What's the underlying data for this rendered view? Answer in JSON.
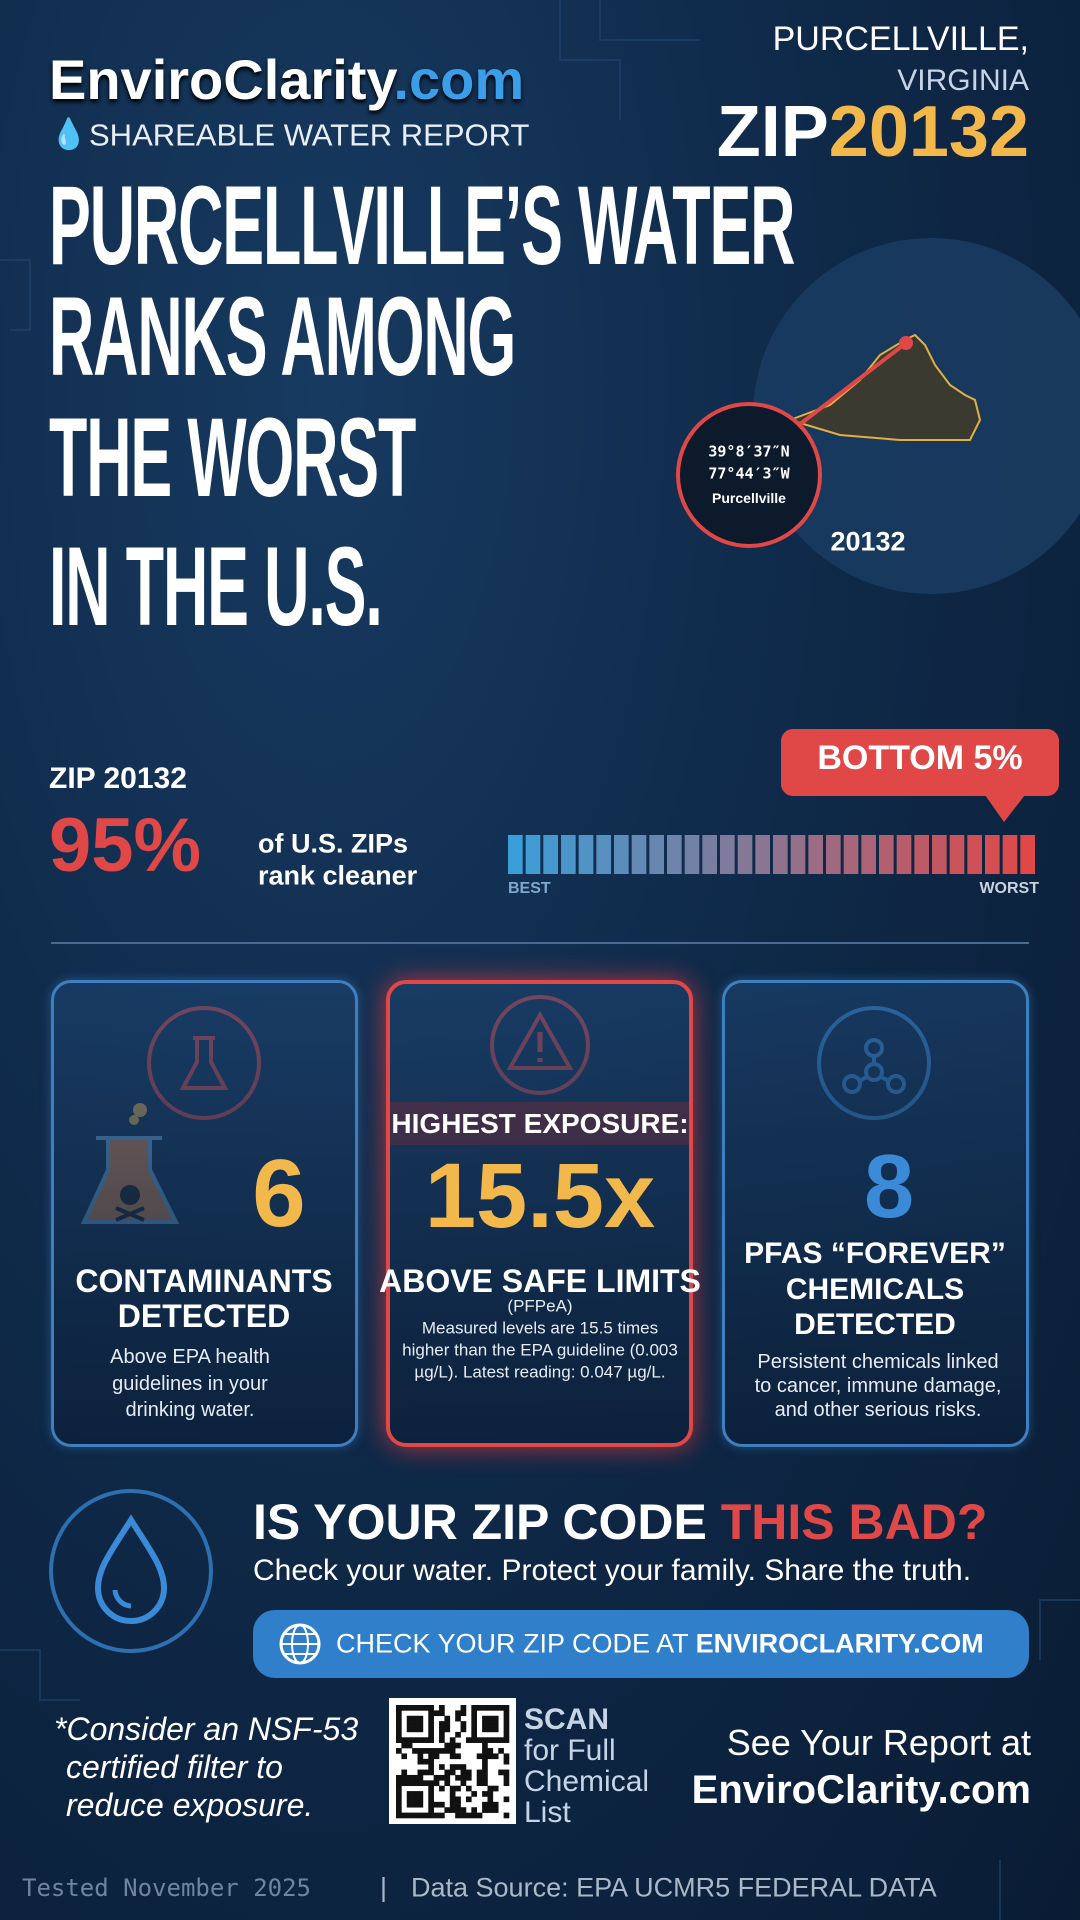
{
  "header": {
    "brand": "EnviroClarity",
    "brand_tld": ".com",
    "subtitle": "SHAREABLE WATER REPORT",
    "city": "PURCELLVILLE,",
    "state": "VIRGINIA",
    "zip_prefix": "ZIP",
    "zip": "20132"
  },
  "headline": [
    "PURCELLVILLE’S WATER",
    "RANKS AMONG",
    "THE WORST",
    "IN THE U.S."
  ],
  "map": {
    "lat": "39°8′37″N",
    "lon": "77°44′3″W",
    "place": "Purcellville",
    "zip": "20132"
  },
  "ranking": {
    "zip_label": "ZIP 20132",
    "percent": "95%",
    "text": [
      "of U.S. ZIPs",
      "rank cleaner"
    ],
    "badge": "BOTTOM 5%",
    "scale_low": "BEST",
    "scale_high": "WORST"
  },
  "cards": [
    {
      "value": "6",
      "title": [
        "CONTAMINANTS",
        "DETECTED"
      ],
      "description": [
        "Above EPA health",
        "guidelines in your",
        "drinking water."
      ]
    },
    {
      "banner": "HIGHEST EXPOSURE:",
      "value": "15.5x",
      "title": [
        "ABOVE SAFE LIMITS"
      ],
      "subtitle": "(PFPeA)",
      "description": [
        "Measured levels are 15.5 times",
        "higher than the EPA guideline (0.003",
        "µg/L). Latest reading: 0.047 µg/L."
      ]
    },
    {
      "value": "8",
      "title": [
        "PFAS “FOREVER”",
        "CHEMICALS",
        "DETECTED"
      ],
      "description": [
        "Persistent chemicals linked",
        "to cancer, immune damage,",
        "and other serious risks."
      ]
    }
  ],
  "cta": {
    "headline": "IS YOUR ZIP CODE",
    "headline_highlight": "THIS BAD?",
    "tagline": "Check your water. Protect your family. Share the truth.",
    "button_prefix": "CHECK YOUR ZIP CODE AT",
    "button_site": "ENVIROCLARITY.COM"
  },
  "footer": {
    "note": [
      "*Consider an NSF-53",
      "certified filter to",
      "reduce exposure."
    ],
    "scan": [
      "SCAN",
      "for Full",
      "Chemical",
      "List"
    ],
    "report_text": "See Your Report at",
    "report_site": "EnviroClarity.com",
    "tested": "Tested November 2025",
    "separator": "|",
    "source": "Data Source: EPA UCMR5 FEDERAL DATA"
  }
}
